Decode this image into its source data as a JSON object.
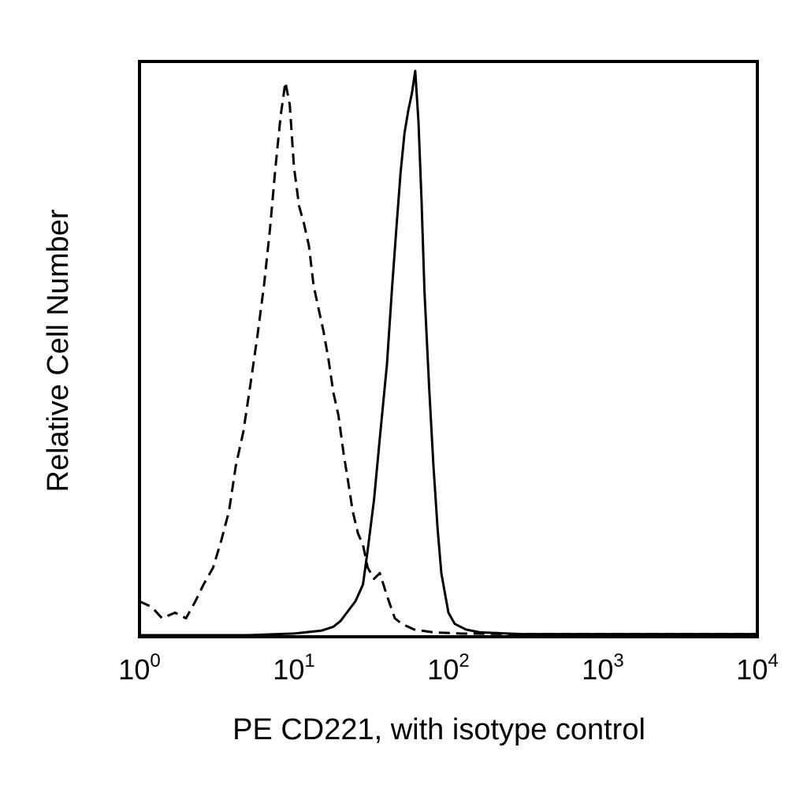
{
  "chart_data": {
    "type": "line",
    "title": "",
    "xlabel": "PE CD221, with isotype control",
    "ylabel": "Relative Cell Number",
    "x_scale": "log",
    "xlim": [
      1,
      10000
    ],
    "ylim": [
      0,
      100
    ],
    "grid": false,
    "x_ticks": [
      {
        "base": "10",
        "exp": "0"
      },
      {
        "base": "10",
        "exp": "1"
      },
      {
        "base": "10",
        "exp": "2"
      },
      {
        "base": "10",
        "exp": "3"
      },
      {
        "base": "10",
        "exp": "4"
      }
    ],
    "series": [
      {
        "style": "dashed",
        "color": "#000000",
        "x": [
          1.0,
          1.2,
          1.4,
          1.7,
          2.0,
          2.3,
          2.6,
          3.0,
          3.4,
          3.8,
          4.2,
          4.7,
          5.2,
          5.8,
          6.4,
          7.0,
          7.6,
          8.2,
          8.8,
          9.4,
          10.0,
          10.8,
          11.6,
          12.5,
          13.4,
          14.4,
          15.5,
          16.7,
          18.0,
          19.4,
          21.0,
          22.5,
          24.0,
          26.0,
          28.0,
          30.0,
          33.0,
          36.0,
          40.0,
          45.0,
          50.0,
          60.0,
          80.0,
          120.0,
          300.0,
          1000.0,
          10000.0
        ],
        "y": [
          6,
          5,
          3,
          4,
          3,
          6,
          9,
          12,
          17,
          22,
          30,
          36,
          44,
          53,
          62,
          72,
          83,
          92,
          98,
          94,
          83,
          76,
          73,
          69,
          62,
          58,
          54,
          49,
          43,
          39,
          32,
          27,
          22,
          18,
          16,
          12,
          10,
          11,
          7,
          3,
          2,
          1,
          0.5,
          0.3,
          0.2,
          0.2,
          0.2
        ]
      },
      {
        "style": "solid",
        "color": "#000000",
        "x": [
          1.0,
          5.0,
          10.0,
          15.0,
          18.0,
          20.0,
          22.0,
          25.0,
          28.0,
          30.0,
          33.0,
          36.0,
          40.0,
          43.0,
          46.0,
          49.0,
          52.0,
          55.0,
          58.0,
          61.0,
          64.0,
          67.0,
          70.0,
          75.0,
          80.0,
          85.0,
          90.0,
          100.0,
          110.0,
          130.0,
          160.0,
          300.0,
          1000.0,
          10000.0
        ],
        "y": [
          0,
          0,
          0.3,
          0.8,
          1.5,
          2.5,
          4,
          6,
          9,
          15,
          24,
          35,
          48,
          61,
          72,
          82,
          89,
          93,
          96,
          100,
          91,
          77,
          61,
          44,
          30,
          19,
          11,
          4,
          2,
          1,
          0.5,
          0.2,
          0.2,
          0.2
        ]
      }
    ]
  }
}
